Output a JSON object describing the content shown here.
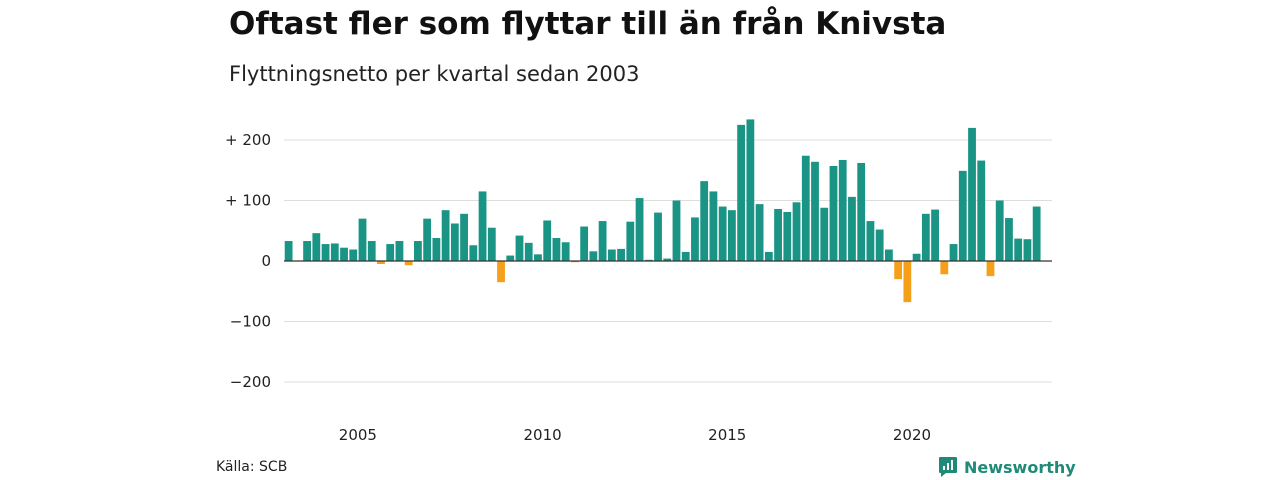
{
  "chart_data": {
    "type": "bar",
    "title": "Oftast fler som flyttar till än från Knivsta",
    "subtitle": "Flyttningsnetto per kvartal sedan 2003",
    "xlabel": "",
    "ylabel": "",
    "x_start": "2003 Q1",
    "x_ticks": [
      {
        "label": "2005",
        "year": 2005
      },
      {
        "label": "2010",
        "year": 2010
      },
      {
        "label": "2015",
        "year": 2015
      },
      {
        "label": "2020",
        "year": 2020
      }
    ],
    "y_ticks": [
      {
        "label": "+ 200",
        "value": 200
      },
      {
        "label": "+ 100",
        "value": 100
      },
      {
        "label": "0",
        "value": 0
      },
      {
        "label": "−100",
        "value": -100
      },
      {
        "label": "−200",
        "value": -200
      }
    ],
    "ylim": [
      -200,
      200
    ],
    "grid": true,
    "colors": {
      "positive": "#1a9485",
      "negative": "#f5a01a",
      "grid": "#dddddd",
      "zero_line": "#333333"
    },
    "series": [
      {
        "values": [
          33,
          0,
          33,
          46,
          28,
          29,
          22,
          19,
          70,
          33,
          -5,
          28,
          33,
          -7,
          33,
          70,
          38,
          84,
          62,
          78,
          26,
          115,
          55,
          -35,
          9,
          42,
          30,
          11,
          67,
          38,
          31,
          -2,
          57,
          16,
          66,
          19,
          20,
          65,
          104,
          2,
          80,
          4,
          100,
          15,
          72,
          132,
          115,
          90,
          84,
          225,
          234,
          94,
          15,
          86,
          81,
          97,
          174,
          164,
          88,
          157,
          167,
          106,
          162,
          66,
          52,
          19,
          -30,
          -68,
          12,
          78,
          85,
          -22,
          28,
          149,
          220,
          166,
          -25,
          100,
          71,
          37,
          36,
          90
        ]
      }
    ]
  },
  "source": "Källa: SCB",
  "brand": {
    "name": "Newsworthy",
    "icon": "newsworthy-logo-icon",
    "color": "#1f8a78"
  }
}
